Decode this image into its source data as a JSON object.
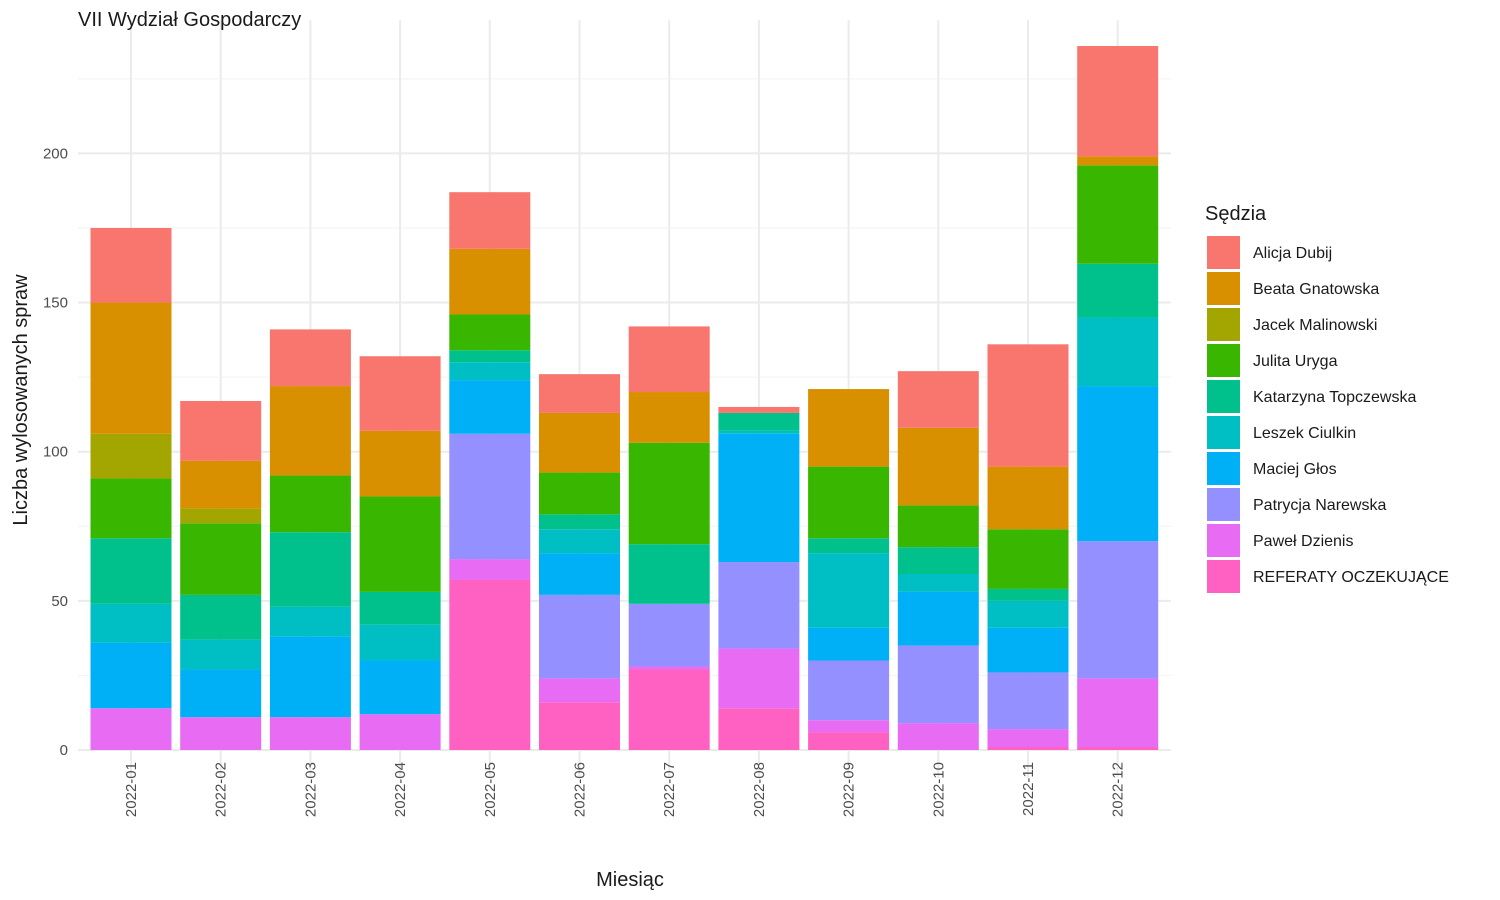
{
  "chart_data": {
    "type": "bar",
    "stacked": true,
    "title": "VII Wydział Gospodarczy",
    "xlabel": "Miesiąc",
    "ylabel": "Liczba wylosowanych spraw",
    "ylim": [
      0,
      240
    ],
    "yticks": [
      0,
      50,
      100,
      150,
      200
    ],
    "grid": true,
    "legend_position": "right",
    "legend_title": "Sędzia",
    "categories": [
      "2022-01",
      "2022-02",
      "2022-03",
      "2022-04",
      "2022-05",
      "2022-06",
      "2022-07",
      "2022-08",
      "2022-09",
      "2022-10",
      "2022-11",
      "2022-12"
    ],
    "series": [
      {
        "name": "REFERATY OCZEKUJĄCE",
        "color": "#FF61C3",
        "values": [
          0,
          0,
          0,
          0,
          57,
          16,
          27,
          14,
          6,
          0,
          1,
          1
        ]
      },
      {
        "name": "Paweł Dzienis",
        "color": "#E76BF3",
        "values": [
          14,
          11,
          11,
          12,
          7,
          8,
          1,
          20,
          4,
          9,
          6,
          23
        ]
      },
      {
        "name": "Patrycja Narewska",
        "color": "#9590FF",
        "values": [
          0,
          0,
          0,
          0,
          42,
          28,
          21,
          29,
          20,
          26,
          19,
          46
        ]
      },
      {
        "name": "Maciej Głos",
        "color": "#00B0F6",
        "values": [
          22,
          16,
          27,
          18,
          18,
          14,
          0,
          43,
          11,
          18,
          15,
          52
        ]
      },
      {
        "name": "Leszek Ciulkin",
        "color": "#00BFC4",
        "values": [
          13,
          10,
          10,
          12,
          6,
          8,
          0,
          1,
          25,
          6,
          9,
          23
        ]
      },
      {
        "name": "Katarzyna Topczewska",
        "color": "#00C08B",
        "values": [
          22,
          15,
          25,
          11,
          4,
          5,
          20,
          6,
          5,
          9,
          4,
          18
        ]
      },
      {
        "name": "Julita Uryga",
        "color": "#39B600",
        "values": [
          20,
          24,
          19,
          32,
          12,
          14,
          34,
          0,
          24,
          14,
          20,
          33
        ]
      },
      {
        "name": "Jacek Malinowski",
        "color": "#A3A500",
        "values": [
          15,
          5,
          0,
          0,
          0,
          0,
          0,
          0,
          0,
          0,
          0,
          0
        ]
      },
      {
        "name": "Beata Gnatowska",
        "color": "#D89000",
        "values": [
          44,
          16,
          30,
          22,
          22,
          20,
          17,
          0,
          26,
          26,
          21,
          3
        ]
      },
      {
        "name": "Alicja Dubij",
        "color": "#F8766D",
        "values": [
          25,
          20,
          19,
          25,
          19,
          13,
          22,
          2,
          0,
          19,
          41,
          37
        ]
      }
    ]
  }
}
